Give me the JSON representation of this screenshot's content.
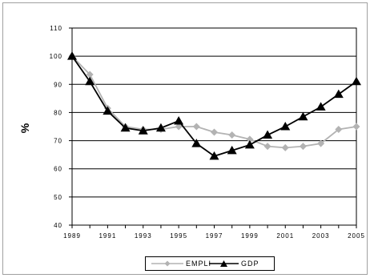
{
  "chart_data": {
    "type": "line",
    "ylabel": "%",
    "ylim": [
      40,
      110
    ],
    "yticks": [
      40,
      50,
      60,
      70,
      80,
      90,
      100,
      110
    ],
    "ytick_labels": [
      "40",
      "50",
      "60",
      "70",
      "80",
      "90",
      "100",
      "110"
    ],
    "x": [
      1989,
      1990,
      1991,
      1992,
      1993,
      1994,
      1995,
      1996,
      1997,
      1998,
      1999,
      2000,
      2001,
      2002,
      2003,
      2004,
      2005
    ],
    "xtick_labels": [
      "1989",
      "1991",
      "1993",
      "1995",
      "1997",
      "1999",
      "2001",
      "2003",
      "2005"
    ],
    "xtick_values": [
      1989,
      1991,
      1993,
      1995,
      1997,
      1999,
      2001,
      2003,
      2005
    ],
    "grid": "horizontal",
    "legend_position": "bottom",
    "series": [
      {
        "name": "EMPLI",
        "color": "#b3b3b3",
        "marker": "diamond",
        "values": [
          100,
          93.5,
          81.5,
          75,
          74,
          74,
          75,
          75,
          73,
          72,
          70.5,
          68,
          67.5,
          68,
          69,
          74,
          75
        ]
      },
      {
        "name": "GDP",
        "color": "#000000",
        "marker": "triangle",
        "values": [
          100,
          91,
          80.5,
          74.5,
          73.5,
          74.5,
          77,
          69,
          64.5,
          66.5,
          68.5,
          72,
          75,
          78.5,
          82,
          86.5,
          91
        ]
      }
    ]
  }
}
